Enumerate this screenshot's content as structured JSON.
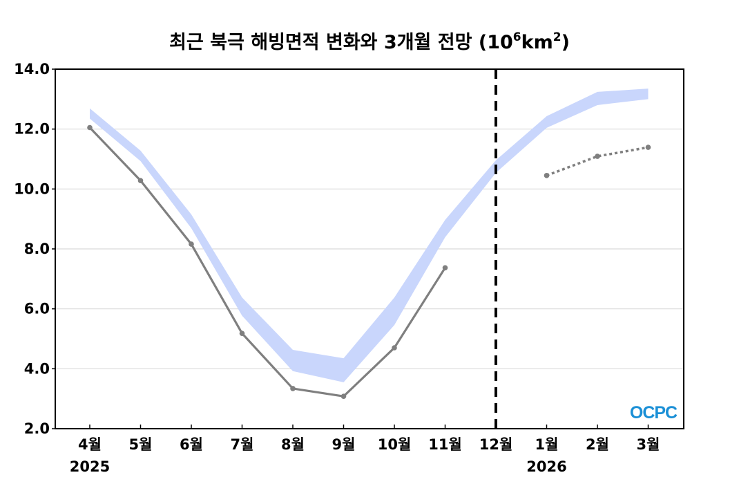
{
  "chart_data": {
    "type": "line",
    "title": "최근 북극 해빙면적 변화와 3개월 전망",
    "title_unit_base": "(10",
    "title_unit_exp1": "6",
    "title_unit_mid": "km",
    "title_unit_exp2": "2",
    "title_unit_end": ")",
    "ylim": [
      2.0,
      14.0
    ],
    "yticks": [
      "2.0",
      "4.0",
      "6.0",
      "8.0",
      "10.0",
      "12.0",
      "14.0"
    ],
    "grid": true,
    "categories": [
      "4월",
      "5월",
      "6월",
      "7월",
      "8월",
      "9월",
      "10월",
      "11월",
      "12월",
      "1월",
      "2월",
      "3월"
    ],
    "year_labels": [
      {
        "label": "2025",
        "at": "4월"
      },
      {
        "label": "2026",
        "at": "1월"
      }
    ],
    "divider_at": "12월",
    "series": [
      {
        "name": "climatology-range",
        "kind": "band",
        "upper": [
          12.69,
          11.28,
          9.15,
          6.38,
          4.63,
          4.35,
          6.38,
          8.97,
          10.96,
          12.43,
          13.24,
          13.35
        ],
        "lower": [
          12.35,
          10.93,
          8.69,
          5.77,
          3.92,
          3.55,
          5.46,
          8.39,
          10.54,
          12.04,
          12.8,
          13.0
        ],
        "color": "#c9d6fc"
      },
      {
        "name": "observed",
        "kind": "line",
        "values": [
          12.05,
          10.28,
          8.16,
          5.18,
          3.34,
          3.08,
          4.7,
          7.37,
          null,
          null,
          null,
          null
        ],
        "color": "#7f7f7f"
      },
      {
        "name": "forecast",
        "kind": "dotted",
        "values": [
          null,
          null,
          null,
          null,
          null,
          null,
          null,
          null,
          null,
          10.45,
          11.09,
          11.39
        ],
        "color": "#7f7f7f"
      }
    ],
    "logo": "OCPC"
  }
}
